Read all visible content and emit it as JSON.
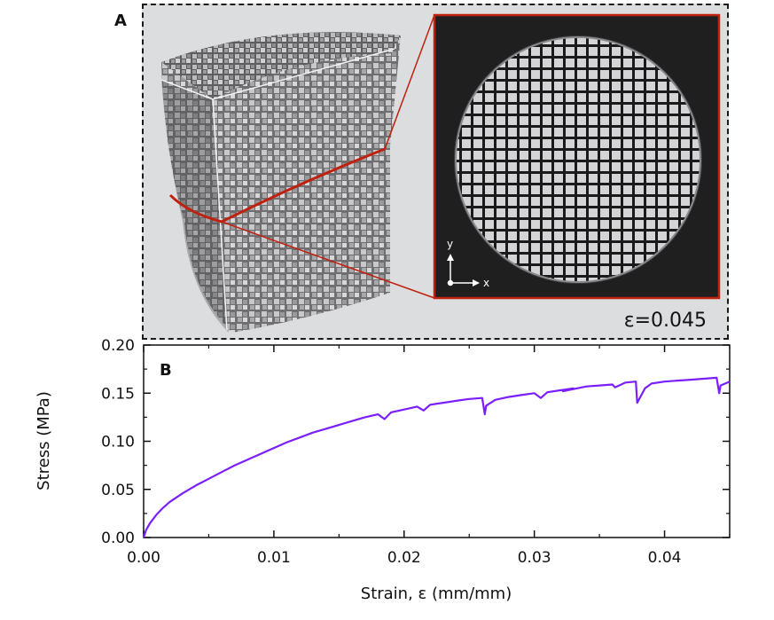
{
  "panels": {
    "a_label": "A",
    "b_label": "B",
    "strain_annotation": "ε=0.045",
    "axis_y_label": "y",
    "axis_x_label": "x"
  },
  "colors": {
    "curve": "#7b1fff",
    "cut_line": "#c0200e",
    "panel_bg": "#dcdddf"
  },
  "chart_data": {
    "type": "line",
    "title": "",
    "xlabel": "Strain, ε (mm/mm)",
    "ylabel": "Stress (MPa)",
    "xlim": [
      0,
      0.045
    ],
    "ylim": [
      0,
      0.2
    ],
    "xticks": [
      "0.00",
      "0.01",
      "0.02",
      "0.03",
      "0.04"
    ],
    "xtick_values": [
      0,
      0.01,
      0.02,
      0.03,
      0.04
    ],
    "yticks": [
      "0.00",
      "0.05",
      "0.10",
      "0.15",
      "0.20"
    ],
    "ytick_values": [
      0,
      0.05,
      0.1,
      0.15,
      0.2
    ],
    "series": [
      {
        "name": "stress-strain",
        "x": [
          0,
          0.0002,
          0.0005,
          0.001,
          0.0015,
          0.002,
          0.003,
          0.004,
          0.005,
          0.006,
          0.007,
          0.008,
          0.009,
          0.01,
          0.011,
          0.012,
          0.013,
          0.014,
          0.015,
          0.016,
          0.017,
          0.018,
          0.0185,
          0.019,
          0.02,
          0.021,
          0.0215,
          0.022,
          0.023,
          0.024,
          0.025,
          0.026,
          0.0262,
          0.0263,
          0.027,
          0.028,
          0.029,
          0.03,
          0.0305,
          0.031,
          0.032,
          0.033,
          0.0322,
          0.034,
          0.035,
          0.036,
          0.0362,
          0.037,
          0.0378,
          0.0379,
          0.0385,
          0.039,
          0.04,
          0.041,
          0.042,
          0.043,
          0.044,
          0.0442,
          0.0443,
          0.045
        ],
        "y": [
          0,
          0.008,
          0.015,
          0.024,
          0.031,
          0.037,
          0.046,
          0.054,
          0.061,
          0.068,
          0.075,
          0.081,
          0.087,
          0.093,
          0.099,
          0.104,
          0.109,
          0.113,
          0.117,
          0.121,
          0.125,
          0.128,
          0.123,
          0.13,
          0.133,
          0.136,
          0.132,
          0.138,
          0.14,
          0.142,
          0.144,
          0.145,
          0.128,
          0.137,
          0.143,
          0.146,
          0.148,
          0.15,
          0.145,
          0.151,
          0.153,
          0.155,
          0.152,
          0.157,
          0.158,
          0.159,
          0.156,
          0.161,
          0.162,
          0.14,
          0.155,
          0.16,
          0.162,
          0.163,
          0.164,
          0.165,
          0.166,
          0.15,
          0.158,
          0.162
        ]
      }
    ]
  }
}
